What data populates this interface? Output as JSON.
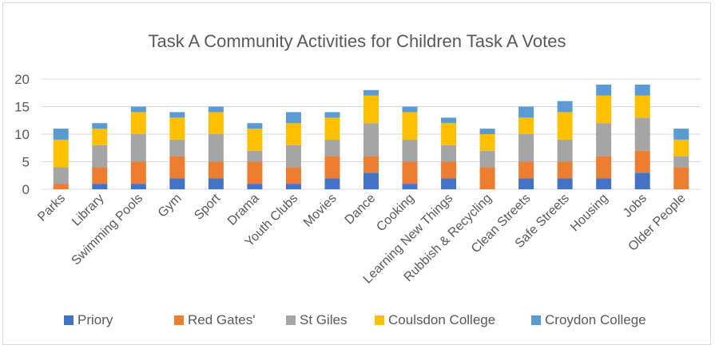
{
  "chart_data": {
    "type": "bar",
    "stacked": true,
    "title": "Task A Community Activities for Children Task A Votes",
    "categories": [
      "Parks",
      "Library",
      "Swimming Pools",
      "Gym",
      "Sport",
      "Drama",
      "Youth Clubs",
      "Movies",
      "Dance",
      "Cooking",
      "Learning New Things",
      "Rubbish & Recycling",
      "Clean Streets",
      "Safe Streets",
      "Housing",
      "Jobs",
      "Older People"
    ],
    "series": [
      {
        "name": "Priory",
        "color": "#4472c4",
        "values": [
          0,
          1,
          1,
          2,
          2,
          1,
          1,
          2,
          3,
          1,
          2,
          0,
          2,
          2,
          2,
          3,
          0
        ]
      },
      {
        "name": "Red Gates'",
        "color": "#ed7d31",
        "values": [
          1,
          3,
          4,
          4,
          3,
          4,
          3,
          4,
          3,
          4,
          3,
          4,
          3,
          3,
          4,
          4,
          4
        ]
      },
      {
        "name": "St Giles",
        "color": "#a5a5a5",
        "values": [
          3,
          4,
          5,
          3,
          5,
          2,
          4,
          3,
          6,
          4,
          3,
          3,
          5,
          4,
          6,
          6,
          2
        ]
      },
      {
        "name": "Coulsdon College",
        "color": "#ffc000",
        "values": [
          5,
          3,
          4,
          4,
          4,
          4,
          4,
          4,
          5,
          5,
          4,
          3,
          3,
          5,
          5,
          4,
          3
        ]
      },
      {
        "name": "Croydon College",
        "color": "#5b9bd5",
        "values": [
          2,
          1,
          1,
          1,
          1,
          1,
          2,
          1,
          1,
          1,
          1,
          1,
          2,
          2,
          2,
          2,
          2
        ]
      }
    ],
    "yticks": [
      0,
      5,
      10,
      15,
      20
    ],
    "ylim": [
      0,
      20
    ],
    "grid": true,
    "legend": "bottom"
  }
}
